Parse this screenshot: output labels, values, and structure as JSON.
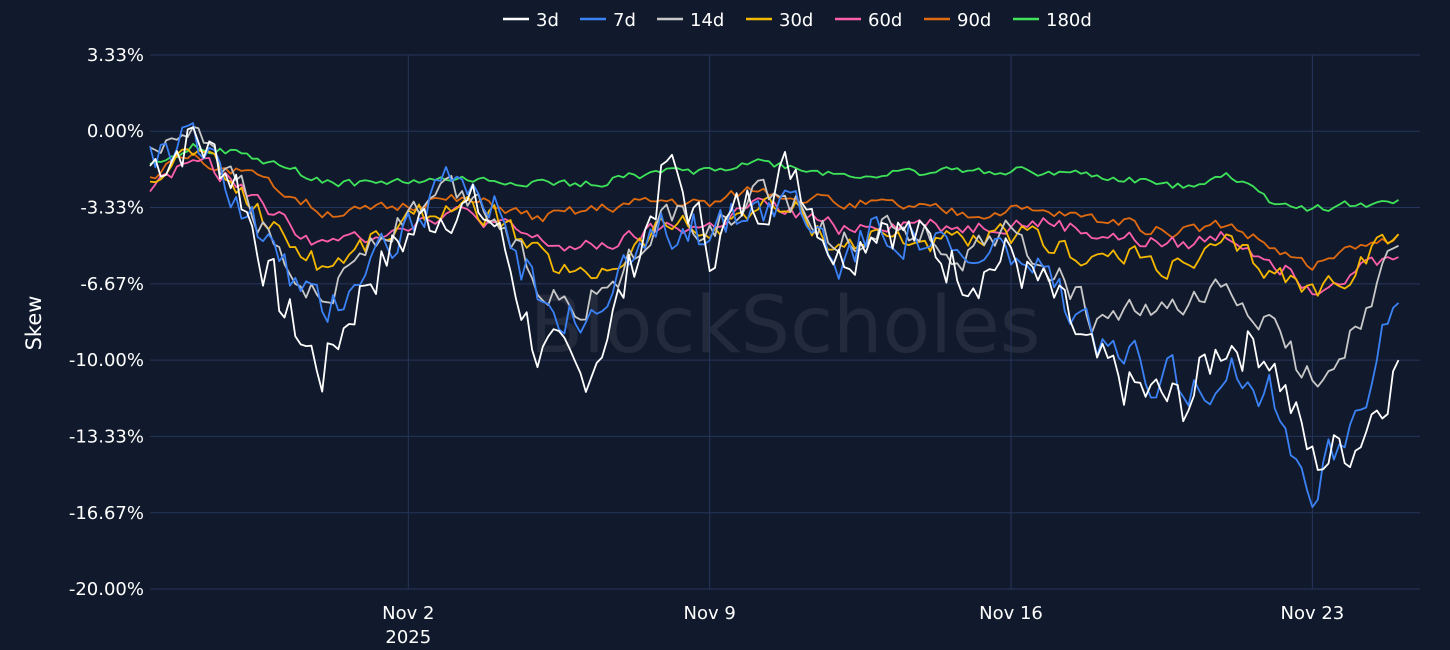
{
  "chart_data": {
    "type": "line",
    "watermark": "BlockScholes",
    "xlabel": "",
    "ylabel": "Skew",
    "ylim": [
      -20,
      3.33
    ],
    "yticks": [
      3.33,
      0,
      -3.33,
      -6.67,
      -10,
      -13.33,
      -16.67,
      -20
    ],
    "ytick_labels": [
      "3.33%",
      "0.00%",
      "-3.33%",
      "-6.67%",
      "-10.00%",
      "-13.33%",
      "-16.67%",
      "-20.00%"
    ],
    "x_range": [
      "2025-10-27",
      "2025-11-25"
    ],
    "xticks": [
      {
        "date": "2025-11-02",
        "label": "Nov 2",
        "sublabel": "2025"
      },
      {
        "date": "2025-11-09",
        "label": "Nov 9",
        "sublabel": ""
      },
      {
        "date": "2025-11-16",
        "label": "Nov 16",
        "sublabel": ""
      },
      {
        "date": "2025-11-23",
        "label": "Nov 23",
        "sublabel": ""
      }
    ],
    "grid": true,
    "legend_position": "top-center",
    "series": [
      {
        "name": "3d",
        "color": "#ffffff",
        "x": [
          "2025-10-27",
          "2025-10-28",
          "2025-10-29",
          "2025-10-30",
          "2025-10-31",
          "2025-11-01",
          "2025-11-02",
          "2025-11-03",
          "2025-11-04",
          "2025-11-05",
          "2025-11-06",
          "2025-11-07",
          "2025-11-08",
          "2025-11-09",
          "2025-11-10",
          "2025-11-11",
          "2025-11-12",
          "2025-11-13",
          "2025-11-14",
          "2025-11-15",
          "2025-11-16",
          "2025-11-17",
          "2025-11-18",
          "2025-11-19",
          "2025-11-20",
          "2025-11-21",
          "2025-11-22",
          "2025-11-23",
          "2025-11-24",
          "2025-11-25"
        ],
        "values": [
          -1.5,
          -0.2,
          -2.0,
          -7.5,
          -10.5,
          -6.5,
          -4.5,
          -3.0,
          -4.0,
          -9.5,
          -11.0,
          -7.0,
          -1.5,
          -5.0,
          -3.0,
          -1.5,
          -5.5,
          -3.5,
          -5.0,
          -6.0,
          -5.5,
          -7.5,
          -10.5,
          -11.5,
          -12.0,
          -9.0,
          -9.5,
          -14.5,
          -13.5,
          -10.0
        ]
      },
      {
        "name": "7d",
        "color": "#3b82f6",
        "x": [
          "2025-10-27",
          "2025-10-28",
          "2025-10-29",
          "2025-10-30",
          "2025-10-31",
          "2025-11-01",
          "2025-11-02",
          "2025-11-03",
          "2025-11-04",
          "2025-11-05",
          "2025-11-06",
          "2025-11-07",
          "2025-11-08",
          "2025-11-09",
          "2025-11-10",
          "2025-11-11",
          "2025-11-12",
          "2025-11-13",
          "2025-11-14",
          "2025-11-15",
          "2025-11-16",
          "2025-11-17",
          "2025-11-18",
          "2025-11-19",
          "2025-11-20",
          "2025-11-21",
          "2025-11-22",
          "2025-11-23",
          "2025-11-24",
          "2025-11-25"
        ],
        "values": [
          -1.0,
          -0.5,
          -2.5,
          -5.5,
          -8.0,
          -5.5,
          -4.0,
          -2.5,
          -3.5,
          -7.0,
          -8.5,
          -6.5,
          -4.0,
          -4.5,
          -3.0,
          -3.0,
          -5.5,
          -4.0,
          -4.5,
          -6.0,
          -5.0,
          -7.0,
          -9.5,
          -10.5,
          -11.0,
          -10.5,
          -11.5,
          -15.5,
          -12.0,
          -7.5
        ]
      },
      {
        "name": "14d",
        "color": "#c8c8c8",
        "x": [
          "2025-10-27",
          "2025-10-28",
          "2025-10-29",
          "2025-10-30",
          "2025-10-31",
          "2025-11-01",
          "2025-11-02",
          "2025-11-03",
          "2025-11-04",
          "2025-11-05",
          "2025-11-06",
          "2025-11-07",
          "2025-11-08",
          "2025-11-09",
          "2025-11-10",
          "2025-11-11",
          "2025-11-12",
          "2025-11-13",
          "2025-11-14",
          "2025-11-15",
          "2025-11-16",
          "2025-11-17",
          "2025-11-18",
          "2025-11-19",
          "2025-11-20",
          "2025-11-21",
          "2025-11-22",
          "2025-11-23",
          "2025-11-24",
          "2025-11-25"
        ],
        "values": [
          -1.2,
          -0.6,
          -2.2,
          -5.0,
          -7.5,
          -5.0,
          -3.8,
          -2.6,
          -3.6,
          -6.5,
          -7.5,
          -6.0,
          -3.5,
          -4.5,
          -3.0,
          -3.0,
          -5.0,
          -4.0,
          -4.5,
          -5.5,
          -4.5,
          -6.0,
          -8.5,
          -8.0,
          -8.0,
          -7.0,
          -8.5,
          -11.0,
          -8.5,
          -5.0
        ]
      },
      {
        "name": "30d",
        "color": "#f5b800",
        "x": [
          "2025-10-27",
          "2025-10-28",
          "2025-10-29",
          "2025-10-30",
          "2025-10-31",
          "2025-11-01",
          "2025-11-02",
          "2025-11-03",
          "2025-11-04",
          "2025-11-05",
          "2025-11-06",
          "2025-11-07",
          "2025-11-08",
          "2025-11-09",
          "2025-11-10",
          "2025-11-11",
          "2025-11-12",
          "2025-11-13",
          "2025-11-14",
          "2025-11-15",
          "2025-11-16",
          "2025-11-17",
          "2025-11-18",
          "2025-11-19",
          "2025-11-20",
          "2025-11-21",
          "2025-11-22",
          "2025-11-23",
          "2025-11-24",
          "2025-11-25"
        ],
        "values": [
          -1.8,
          -0.8,
          -2.5,
          -4.5,
          -6.0,
          -5.0,
          -4.0,
          -3.2,
          -3.8,
          -5.5,
          -6.5,
          -5.5,
          -4.0,
          -4.5,
          -3.2,
          -3.5,
          -5.0,
          -4.5,
          -4.8,
          -5.0,
          -4.5,
          -5.0,
          -5.5,
          -5.5,
          -6.0,
          -5.0,
          -6.0,
          -7.0,
          -6.0,
          -4.5
        ]
      },
      {
        "name": "60d",
        "color": "#ff5fa8",
        "x": [
          "2025-10-27",
          "2025-10-28",
          "2025-10-29",
          "2025-10-30",
          "2025-10-31",
          "2025-11-01",
          "2025-11-02",
          "2025-11-03",
          "2025-11-04",
          "2025-11-05",
          "2025-11-06",
          "2025-11-07",
          "2025-11-08",
          "2025-11-09",
          "2025-11-10",
          "2025-11-11",
          "2025-11-12",
          "2025-11-13",
          "2025-11-14",
          "2025-11-15",
          "2025-11-16",
          "2025-11-17",
          "2025-11-18",
          "2025-11-19",
          "2025-11-20",
          "2025-11-21",
          "2025-11-22",
          "2025-11-23",
          "2025-11-24",
          "2025-11-25"
        ],
        "values": [
          -2.5,
          -1.2,
          -2.2,
          -3.8,
          -5.0,
          -4.5,
          -4.0,
          -3.5,
          -4.0,
          -4.8,
          -5.2,
          -4.8,
          -4.2,
          -4.2,
          -3.2,
          -3.6,
          -4.2,
          -4.0,
          -4.0,
          -4.2,
          -4.0,
          -4.0,
          -4.5,
          -4.8,
          -5.0,
          -4.5,
          -5.5,
          -6.8,
          -6.0,
          -5.5
        ]
      },
      {
        "name": "90d",
        "color": "#e06a10",
        "x": [
          "2025-10-27",
          "2025-10-28",
          "2025-10-29",
          "2025-10-30",
          "2025-10-31",
          "2025-11-01",
          "2025-11-02",
          "2025-11-03",
          "2025-11-04",
          "2025-11-05",
          "2025-11-06",
          "2025-11-07",
          "2025-11-08",
          "2025-11-09",
          "2025-11-10",
          "2025-11-11",
          "2025-11-12",
          "2025-11-13",
          "2025-11-14",
          "2025-11-15",
          "2025-11-16",
          "2025-11-17",
          "2025-11-18",
          "2025-11-19",
          "2025-11-20",
          "2025-11-21",
          "2025-11-22",
          "2025-11-23",
          "2025-11-24",
          "2025-11-25"
        ],
        "values": [
          -2.0,
          -1.0,
          -1.8,
          -2.5,
          -3.5,
          -3.5,
          -3.2,
          -3.0,
          -3.2,
          -3.8,
          -3.5,
          -3.2,
          -3.0,
          -3.2,
          -2.5,
          -2.8,
          -3.2,
          -3.2,
          -3.4,
          -3.6,
          -3.5,
          -3.6,
          -3.8,
          -4.2,
          -4.4,
          -4.0,
          -5.0,
          -6.0,
          -5.2,
          -4.5
        ]
      },
      {
        "name": "180d",
        "color": "#3ee35a",
        "x": [
          "2025-10-27",
          "2025-10-28",
          "2025-10-29",
          "2025-10-30",
          "2025-10-31",
          "2025-11-01",
          "2025-11-02",
          "2025-11-03",
          "2025-11-04",
          "2025-11-05",
          "2025-11-06",
          "2025-11-07",
          "2025-11-08",
          "2025-11-09",
          "2025-11-10",
          "2025-11-11",
          "2025-11-12",
          "2025-11-13",
          "2025-11-14",
          "2025-11-15",
          "2025-11-16",
          "2025-11-17",
          "2025-11-18",
          "2025-11-19",
          "2025-11-20",
          "2025-11-21",
          "2025-11-22",
          "2025-11-23",
          "2025-11-24",
          "2025-11-25"
        ],
        "values": [
          -1.5,
          -0.6,
          -1.0,
          -1.5,
          -2.2,
          -2.3,
          -2.2,
          -2.1,
          -2.2,
          -2.2,
          -2.4,
          -2.0,
          -1.8,
          -1.7,
          -1.3,
          -1.6,
          -1.9,
          -1.9,
          -1.8,
          -1.7,
          -1.7,
          -1.8,
          -2.0,
          -2.2,
          -2.4,
          -1.8,
          -3.0,
          -3.4,
          -3.2,
          -3.0
        ]
      }
    ]
  }
}
